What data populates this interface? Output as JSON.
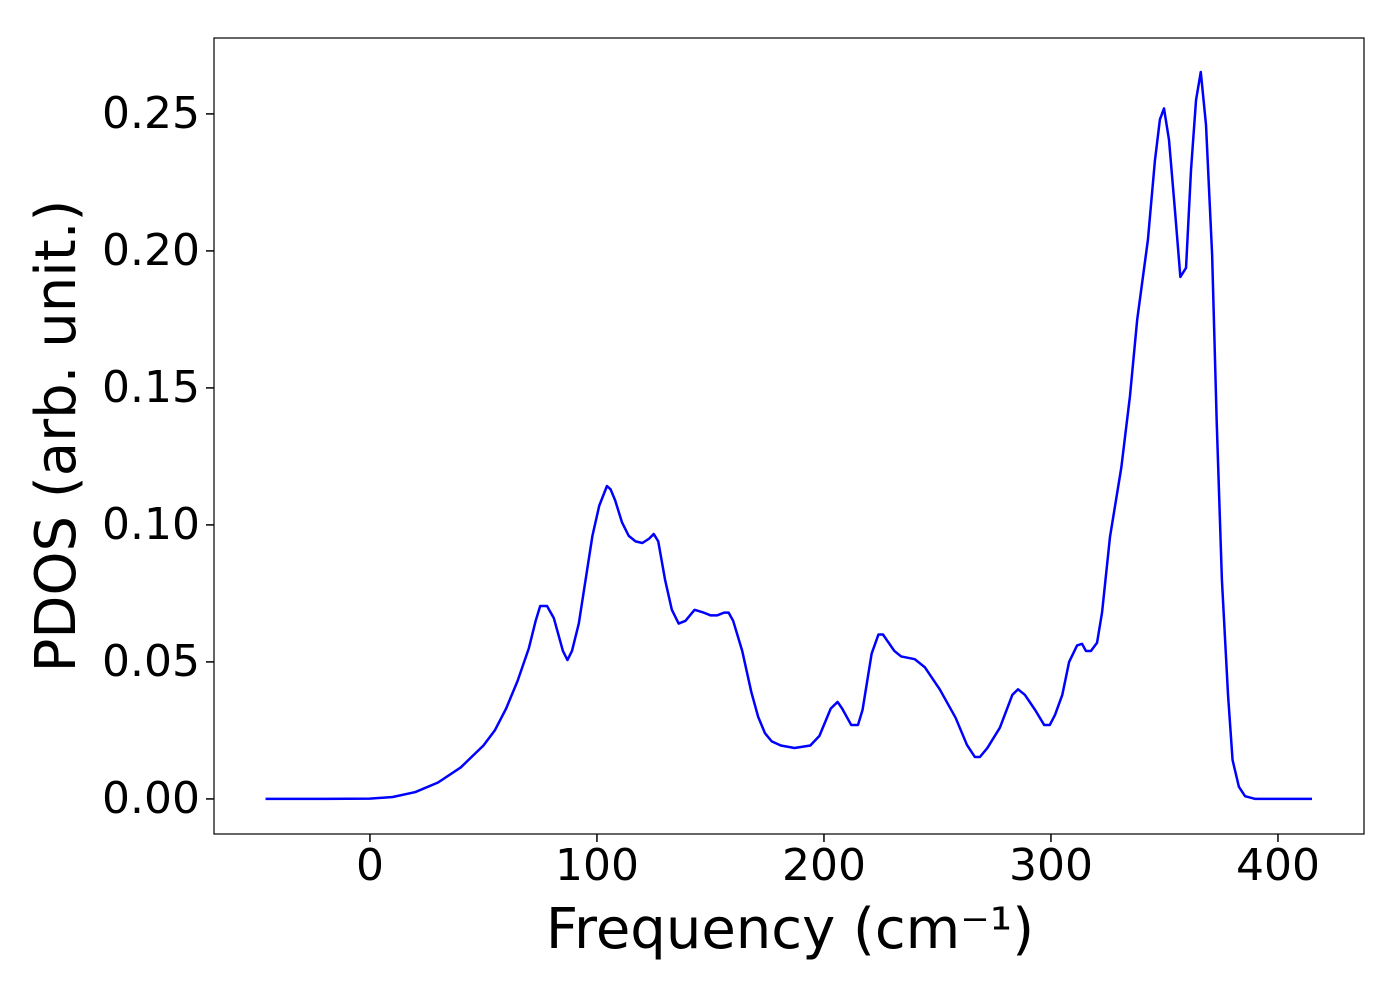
{
  "chart_data": {
    "type": "line",
    "xlabel": "Frequency (cm⁻¹)",
    "ylabel": "PDOS (arb. unit.)",
    "xlim": [
      -68.7,
      437.9
    ],
    "ylim": [
      -0.0128,
      0.2777
    ],
    "xticks": [
      0,
      100,
      200,
      300,
      400
    ],
    "yticks": [
      {
        "value": 0,
        "label": "0.00"
      },
      {
        "value": 0.05,
        "label": "0.05"
      },
      {
        "value": 0.1,
        "label": "0.10"
      },
      {
        "value": 0.15,
        "label": "0.15"
      },
      {
        "value": 0.2,
        "label": "0.20"
      },
      {
        "value": 0.25,
        "label": "0.25"
      }
    ],
    "grid": false,
    "series": [
      {
        "color": "#0000ff",
        "x": [
          -46,
          -20,
          0,
          10,
          20,
          30,
          40,
          50,
          55,
          60,
          65,
          70,
          73,
          75,
          78,
          81,
          85,
          87,
          89,
          92,
          95,
          98,
          101,
          104.4,
          106,
          108,
          111,
          114,
          117,
          120,
          123,
          125,
          127,
          130,
          133,
          136,
          139,
          143,
          147,
          150,
          153,
          156,
          158,
          160,
          164,
          168,
          171,
          174,
          177,
          181,
          187,
          194,
          198,
          203,
          206,
          208,
          212,
          215,
          217,
          221,
          224,
          226,
          231,
          234,
          240,
          244.5,
          251,
          258,
          263,
          266.5,
          268.7,
          272,
          277.5,
          283,
          285.5,
          288.5,
          293,
          297,
          299.5,
          301.8,
          305,
          308,
          311.5,
          313.7,
          315.4,
          317.6,
          320.3,
          322.5,
          326,
          331,
          334.8,
          338,
          342.7,
          345.8,
          348,
          349.8,
          352,
          354.6,
          357,
          359.5,
          361.7,
          363.9,
          366,
          368.3,
          371,
          373,
          375.3,
          378,
          380,
          382.8,
          385.5,
          390,
          400,
          415
        ],
        "values": [
          0,
          0,
          0.0001,
          0.0007,
          0.0025,
          0.006,
          0.0115,
          0.0195,
          0.025,
          0.033,
          0.043,
          0.055,
          0.065,
          0.0704,
          0.0704,
          0.066,
          0.054,
          0.0507,
          0.054,
          0.064,
          0.08,
          0.096,
          0.107,
          0.1142,
          0.113,
          0.109,
          0.101,
          0.096,
          0.094,
          0.0934,
          0.095,
          0.0967,
          0.094,
          0.08,
          0.069,
          0.064,
          0.065,
          0.069,
          0.068,
          0.067,
          0.067,
          0.068,
          0.068,
          0.065,
          0.054,
          0.039,
          0.03,
          0.024,
          0.021,
          0.0195,
          0.0186,
          0.0195,
          0.023,
          0.033,
          0.0354,
          0.033,
          0.027,
          0.027,
          0.0325,
          0.053,
          0.06,
          0.06,
          0.054,
          0.052,
          0.051,
          0.048,
          0.04,
          0.0296,
          0.0197,
          0.0153,
          0.0153,
          0.0186,
          0.026,
          0.038,
          0.04,
          0.038,
          0.0325,
          0.027,
          0.027,
          0.0307,
          0.038,
          0.05,
          0.056,
          0.0566,
          0.054,
          0.054,
          0.057,
          0.068,
          0.0956,
          0.121,
          0.147,
          0.175,
          0.204,
          0.233,
          0.248,
          0.252,
          0.2405,
          0.215,
          0.1905,
          0.1938,
          0.2296,
          0.255,
          0.2653,
          0.246,
          0.1985,
          0.138,
          0.08,
          0.038,
          0.0142,
          0.0044,
          0.001,
          0,
          0,
          0
        ]
      }
    ]
  }
}
